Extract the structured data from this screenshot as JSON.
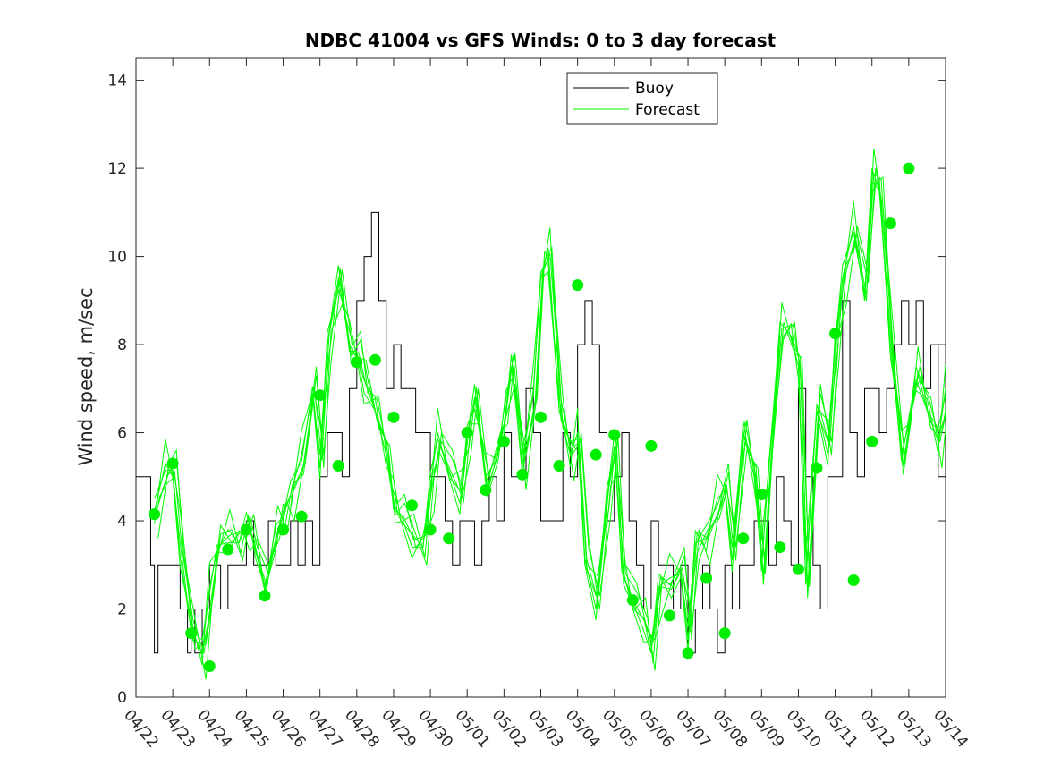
{
  "chart_data": {
    "type": "line",
    "title": "NDBC 41004 vs GFS Winds: 0 to 3 day forecast",
    "xlabel": "",
    "ylabel": "Wind speed, m/sec",
    "xlim": [
      0,
      22
    ],
    "ylim": [
      0,
      14.5
    ],
    "yticks": [
      0,
      2,
      4,
      6,
      8,
      10,
      12,
      14
    ],
    "xtick_labels": [
      "04/22",
      "04/23",
      "04/24",
      "04/25",
      "04/26",
      "04/27",
      "04/28",
      "04/29",
      "04/30",
      "05/01",
      "05/02",
      "05/03",
      "05/04",
      "05/05",
      "05/06",
      "05/07",
      "05/08",
      "05/09",
      "05/10",
      "05/11",
      "05/12",
      "05/13",
      "05/14"
    ],
    "legend": {
      "position": "top-right",
      "entries": [
        "Buoy",
        "Forecast"
      ]
    },
    "colors": {
      "buoy": "#000000",
      "forecast": "#00ff00",
      "markers": "#00ee00",
      "axis": "#262626"
    },
    "series": [
      {
        "name": "Buoy",
        "x": [
          0,
          0.3,
          0.4,
          0.5,
          0.6,
          0.8,
          1.0,
          1.2,
          1.4,
          1.5,
          1.6,
          1.8,
          2.0,
          2.2,
          2.3,
          2.5,
          2.7,
          2.9,
          3.0,
          3.2,
          3.4,
          3.6,
          3.8,
          4.0,
          4.2,
          4.4,
          4.6,
          4.8,
          5.0,
          5.2,
          5.4,
          5.6,
          5.8,
          6.0,
          6.2,
          6.4,
          6.6,
          6.8,
          7.0,
          7.2,
          7.4,
          7.6,
          7.8,
          8.0,
          8.2,
          8.4,
          8.6,
          8.8,
          9.0,
          9.2,
          9.4,
          9.6,
          9.8,
          10.0,
          10.2,
          10.4,
          10.6,
          10.8,
          11.0,
          11.2,
          11.4,
          11.6,
          11.8,
          12.0,
          12.2,
          12.4,
          12.6,
          12.8,
          13.0,
          13.2,
          13.4,
          13.6,
          13.8,
          14.0,
          14.2,
          14.4,
          14.6,
          14.8,
          15.0,
          15.2,
          15.4,
          15.6,
          15.8,
          16.0,
          16.2,
          16.4,
          16.6,
          16.8,
          17.0,
          17.2,
          17.4,
          17.6,
          17.8,
          18.0,
          18.2,
          18.4,
          18.6,
          18.8,
          19.0,
          19.2,
          19.4,
          19.6,
          19.8,
          20.0,
          20.2,
          20.4,
          20.6,
          20.8,
          21.0,
          21.2,
          21.4,
          21.6,
          21.8,
          22.0
        ],
        "values": [
          5,
          5,
          3,
          1,
          3,
          3,
          3,
          2,
          1,
          2,
          1,
          2,
          3,
          3,
          2,
          3,
          3,
          3,
          4,
          3,
          3,
          4,
          3,
          3,
          4,
          3,
          4,
          3,
          5,
          6,
          6,
          5,
          7,
          9,
          10,
          11,
          9,
          7,
          8,
          7,
          7,
          6,
          6,
          5,
          5,
          4,
          3,
          4,
          4,
          3,
          4,
          5,
          4,
          6,
          5,
          5,
          7,
          6,
          4,
          4,
          4,
          6,
          5,
          8,
          9,
          8,
          6,
          4,
          5,
          6,
          4,
          3,
          2,
          4,
          3,
          3,
          2,
          3,
          1,
          2,
          3,
          2,
          1,
          3,
          2,
          3,
          3,
          4,
          4,
          3,
          5,
          4,
          3,
          7,
          5,
          3,
          2,
          5,
          5,
          9,
          6,
          5,
          7,
          7,
          6,
          7,
          8,
          9,
          8,
          9,
          7,
          8,
          5,
          6
        ]
      },
      {
        "name": "Forecast",
        "x": [
          0.5,
          0.8,
          1.0,
          1.2,
          1.5,
          1.8,
          2.0,
          2.2,
          2.5,
          2.8,
          3.0,
          3.2,
          3.5,
          3.8,
          4.0,
          4.2,
          4.5,
          4.8,
          5.0,
          5.2,
          5.5,
          5.8,
          6.0,
          6.2,
          6.5,
          6.8,
          7.0,
          7.2,
          7.5,
          7.8,
          8.0,
          8.2,
          8.5,
          8.8,
          9.0,
          9.2,
          9.5,
          9.8,
          10.0,
          10.2,
          10.5,
          10.8,
          11.0,
          11.2,
          11.5,
          11.8,
          12.0,
          12.2,
          12.5,
          12.8,
          13.0,
          13.2,
          13.5,
          13.8,
          14.0,
          14.2,
          14.5,
          14.8,
          15.0,
          15.2,
          15.5,
          15.8,
          16.0,
          16.2,
          16.5,
          16.8,
          17.0,
          17.2,
          17.5,
          17.8,
          18.0,
          18.2,
          18.5,
          18.8,
          19.0,
          19.2,
          19.5,
          19.8,
          20.0,
          20.2,
          20.5,
          20.8,
          21.0,
          21.2,
          21.5,
          21.8,
          22.0
        ],
        "values": [
          4.2,
          5.3,
          5.0,
          3.5,
          1.5,
          1.0,
          2.5,
          3.3,
          3.8,
          3.5,
          3.9,
          3.6,
          2.4,
          3.9,
          4.1,
          4.6,
          5.5,
          6.9,
          5.5,
          8.0,
          9.5,
          8.0,
          7.7,
          7.2,
          6.5,
          5.5,
          4.4,
          4.0,
          3.7,
          3.4,
          4.8,
          6.0,
          5.0,
          4.7,
          5.9,
          6.8,
          5.0,
          5.4,
          6.5,
          7.5,
          5.3,
          7.0,
          9.5,
          10.2,
          6.5,
          5.5,
          6.0,
          3.0,
          2.3,
          4.5,
          5.7,
          3.0,
          2.0,
          1.8,
          1.0,
          2.5,
          2.7,
          2.8,
          1.6,
          3.5,
          3.6,
          4.5,
          4.7,
          3.4,
          6.0,
          5.0,
          3.0,
          5.2,
          8.5,
          8.2,
          7.5,
          2.7,
          6.5,
          5.8,
          8.0,
          9.5,
          10.7,
          9.0,
          12.0,
          11.5,
          8.0,
          5.5,
          6.2,
          7.5,
          6.5,
          5.8,
          7.0
        ]
      },
      {
        "name": "Forecast markers",
        "x": [
          0.5,
          1.0,
          1.5,
          2.0,
          2.5,
          3.0,
          3.5,
          4.0,
          4.5,
          5.0,
          5.5,
          6.0,
          6.5,
          7.0,
          7.5,
          8.0,
          8.5,
          9.0,
          9.5,
          10.0,
          10.5,
          11.0,
          11.5,
          12.0,
          12.5,
          13.0,
          13.5,
          14.0,
          14.5,
          15.0,
          15.5,
          16.0,
          16.5,
          17.0,
          17.5,
          18.0,
          18.5,
          19.0,
          19.5,
          20.0,
          20.5,
          21.0
        ],
        "values": [
          4.15,
          5.3,
          1.45,
          0.7,
          3.35,
          3.8,
          2.3,
          3.8,
          4.1,
          6.85,
          5.25,
          7.6,
          7.65,
          6.35,
          4.35,
          3.8,
          3.6,
          6.0,
          4.7,
          5.8,
          5.05,
          6.35,
          5.25,
          9.35,
          5.5,
          5.95,
          2.2,
          5.7,
          1.85,
          1.0,
          2.7,
          1.45,
          3.6,
          4.6,
          3.4,
          2.9,
          5.2,
          8.25,
          2.65,
          5.8,
          10.75,
          12.0
        ]
      }
    ]
  }
}
